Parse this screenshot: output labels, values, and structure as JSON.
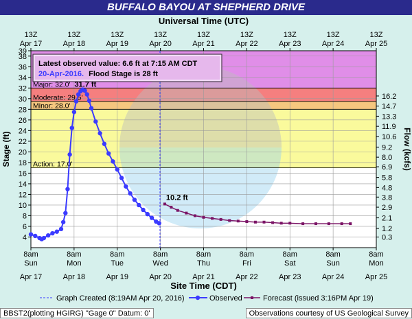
{
  "chart_data": {
    "type": "line",
    "title": "BUFFALO BAYOU AT SHEPHERD DRIVE",
    "top_axis_title": "Universal Time (UTC)",
    "top_tick_labels": [
      {
        "line1": "13Z",
        "line2": "Apr 17"
      },
      {
        "line1": "13Z",
        "line2": "Apr 18"
      },
      {
        "line1": "13Z",
        "line2": "Apr 19"
      },
      {
        "line1": "13Z",
        "line2": "Apr 20"
      },
      {
        "line1": "13Z",
        "line2": "Apr 21"
      },
      {
        "line1": "13Z",
        "line2": "Apr 22"
      },
      {
        "line1": "13Z",
        "line2": "Apr 23"
      },
      {
        "line1": "13Z",
        "line2": "Apr 24"
      },
      {
        "line1": "13Z",
        "line2": "Apr 25"
      }
    ],
    "xlabel": "Site Time (CDT)",
    "bottom_tick_labels": [
      {
        "time": "8am",
        "day": "Sun",
        "date": "Apr 17"
      },
      {
        "time": "8am",
        "day": "Mon",
        "date": "Apr 18"
      },
      {
        "time": "8am",
        "day": "Tue",
        "date": "Apr 19"
      },
      {
        "time": "8am",
        "day": "Wed",
        "date": "Apr 20"
      },
      {
        "time": "8am",
        "day": "Thu",
        "date": "Apr 21"
      },
      {
        "time": "8am",
        "day": "Fri",
        "date": "Apr 22"
      },
      {
        "time": "8am",
        "day": "Sat",
        "date": "Apr 23"
      },
      {
        "time": "8am",
        "day": "Sun",
        "date": "Apr 24"
      },
      {
        "time": "8am",
        "day": "Mon",
        "date": "Apr 25"
      }
    ],
    "xlim": [
      0,
      8
    ],
    "ylabel": "Stage (ft)",
    "ylim": [
      2,
      39
    ],
    "y_ticks": [
      4,
      6,
      8,
      10,
      12,
      14,
      16,
      18,
      20,
      22,
      24,
      26,
      28,
      30,
      32,
      34,
      36,
      38,
      39
    ],
    "y2label": "Flow (kcfs)",
    "y2_ticks": [
      {
        "label": "0.3",
        "stage": 4.0
      },
      {
        "label": "1.2",
        "stage": 5.6
      },
      {
        "label": "2.1",
        "stage": 7.6
      },
      {
        "label": "2.9",
        "stage": 9.6
      },
      {
        "label": "3.8",
        "stage": 11.5
      },
      {
        "label": "4.8",
        "stage": 13.3
      },
      {
        "label": "5.8",
        "stage": 15.2
      },
      {
        "label": "6.9",
        "stage": 17.2
      },
      {
        "label": "8.0",
        "stage": 19.0
      },
      {
        "label": "9.2",
        "stage": 20.9
      },
      {
        "label": "10.6",
        "stage": 22.9
      },
      {
        "label": "11.9",
        "stage": 24.8
      },
      {
        "label": "13.3",
        "stage": 26.7
      },
      {
        "label": "14.7",
        "stage": 28.6
      },
      {
        "label": "16.2",
        "stage": 30.5
      }
    ],
    "flood_categories": [
      {
        "name": "Major",
        "label": "Major: 32.0'",
        "from": 32,
        "to": 39,
        "color": "#e08ee8"
      },
      {
        "name": "Moderate",
        "label": "Moderate: 29.5'",
        "from": 29.5,
        "to": 32,
        "color": "#f57f7f"
      },
      {
        "name": "Minor",
        "label": "Minor: 28.0'",
        "from": 28,
        "to": 29.5,
        "color": "#f5c77f"
      },
      {
        "name": "Action",
        "label": "Action: 17.0'",
        "from": 17,
        "to": 28,
        "color": "#fafa9c"
      }
    ],
    "annotation": {
      "line1": "Latest observed value: 6.6 ft at 7:15 AM CDT",
      "line2_date": "20-Apr-2016.",
      "line2_rest": "Flood Stage is 28 ft"
    },
    "peak_label": "31.7 ft",
    "forecast_label": "10.2 ft",
    "graph_created_x": 2.99,
    "series": [
      {
        "name": "Observed",
        "color": "#3b3bff",
        "points": [
          [
            0.0,
            4.5
          ],
          [
            0.1,
            4.2
          ],
          [
            0.2,
            3.8
          ],
          [
            0.25,
            3.6
          ],
          [
            0.3,
            3.8
          ],
          [
            0.4,
            4.3
          ],
          [
            0.5,
            4.7
          ],
          [
            0.6,
            5.0
          ],
          [
            0.7,
            5.5
          ],
          [
            0.75,
            6.8
          ],
          [
            0.8,
            8.5
          ],
          [
            0.85,
            13.0
          ],
          [
            0.9,
            19.5
          ],
          [
            0.95,
            24.5
          ],
          [
            1.0,
            27.5
          ],
          [
            1.05,
            29.5
          ],
          [
            1.1,
            30.8
          ],
          [
            1.15,
            31.4
          ],
          [
            1.2,
            31.7
          ],
          [
            1.25,
            31.5
          ],
          [
            1.3,
            30.8
          ],
          [
            1.35,
            29.6
          ],
          [
            1.4,
            28.2
          ],
          [
            1.5,
            25.7
          ],
          [
            1.6,
            23.5
          ],
          [
            1.7,
            21.5
          ],
          [
            1.8,
            19.7
          ],
          [
            1.9,
            18.2
          ],
          [
            2.0,
            16.7
          ],
          [
            2.1,
            15.1
          ],
          [
            2.2,
            13.5
          ],
          [
            2.3,
            12.2
          ],
          [
            2.4,
            11.0
          ],
          [
            2.5,
            10.0
          ],
          [
            2.6,
            9.1
          ],
          [
            2.7,
            8.3
          ],
          [
            2.8,
            7.6
          ],
          [
            2.9,
            6.9
          ],
          [
            2.97,
            6.6
          ]
        ]
      },
      {
        "name": "Forecast (issued 3:16PM Apr 19)",
        "color": "#7b1466",
        "points": [
          [
            3.1,
            10.2
          ],
          [
            3.25,
            9.6
          ],
          [
            3.4,
            9.0
          ],
          [
            3.6,
            8.5
          ],
          [
            3.8,
            8.0
          ],
          [
            4.0,
            7.7
          ],
          [
            4.2,
            7.5
          ],
          [
            4.4,
            7.3
          ],
          [
            4.6,
            7.1
          ],
          [
            4.8,
            7.0
          ],
          [
            5.0,
            6.9
          ],
          [
            5.2,
            6.8
          ],
          [
            5.4,
            6.8
          ],
          [
            5.6,
            6.7
          ],
          [
            5.8,
            6.6
          ],
          [
            6.0,
            6.6
          ],
          [
            6.3,
            6.5
          ],
          [
            6.6,
            6.5
          ],
          [
            6.9,
            6.5
          ],
          [
            7.2,
            6.5
          ],
          [
            7.4,
            6.5
          ]
        ]
      }
    ],
    "legend": [
      {
        "key": "created",
        "label": "Graph Created (8:19AM Apr 20, 2016)"
      },
      {
        "key": "observed",
        "label": "Observed"
      },
      {
        "key": "forecast",
        "label": "Forecast (issued 3:16PM Apr 19)"
      }
    ],
    "watermark": "NATIONAL OCEANIC AND ATMOSPHERIC ADMINISTRATION / U.S. DEPARTMENT OF COMMERCE / NOAA"
  },
  "footer": {
    "left": "BBST2(plotting HGIRG) \"Gage 0\" Datum: 0'",
    "right": "Observations courtesy of US Geological Survey"
  }
}
